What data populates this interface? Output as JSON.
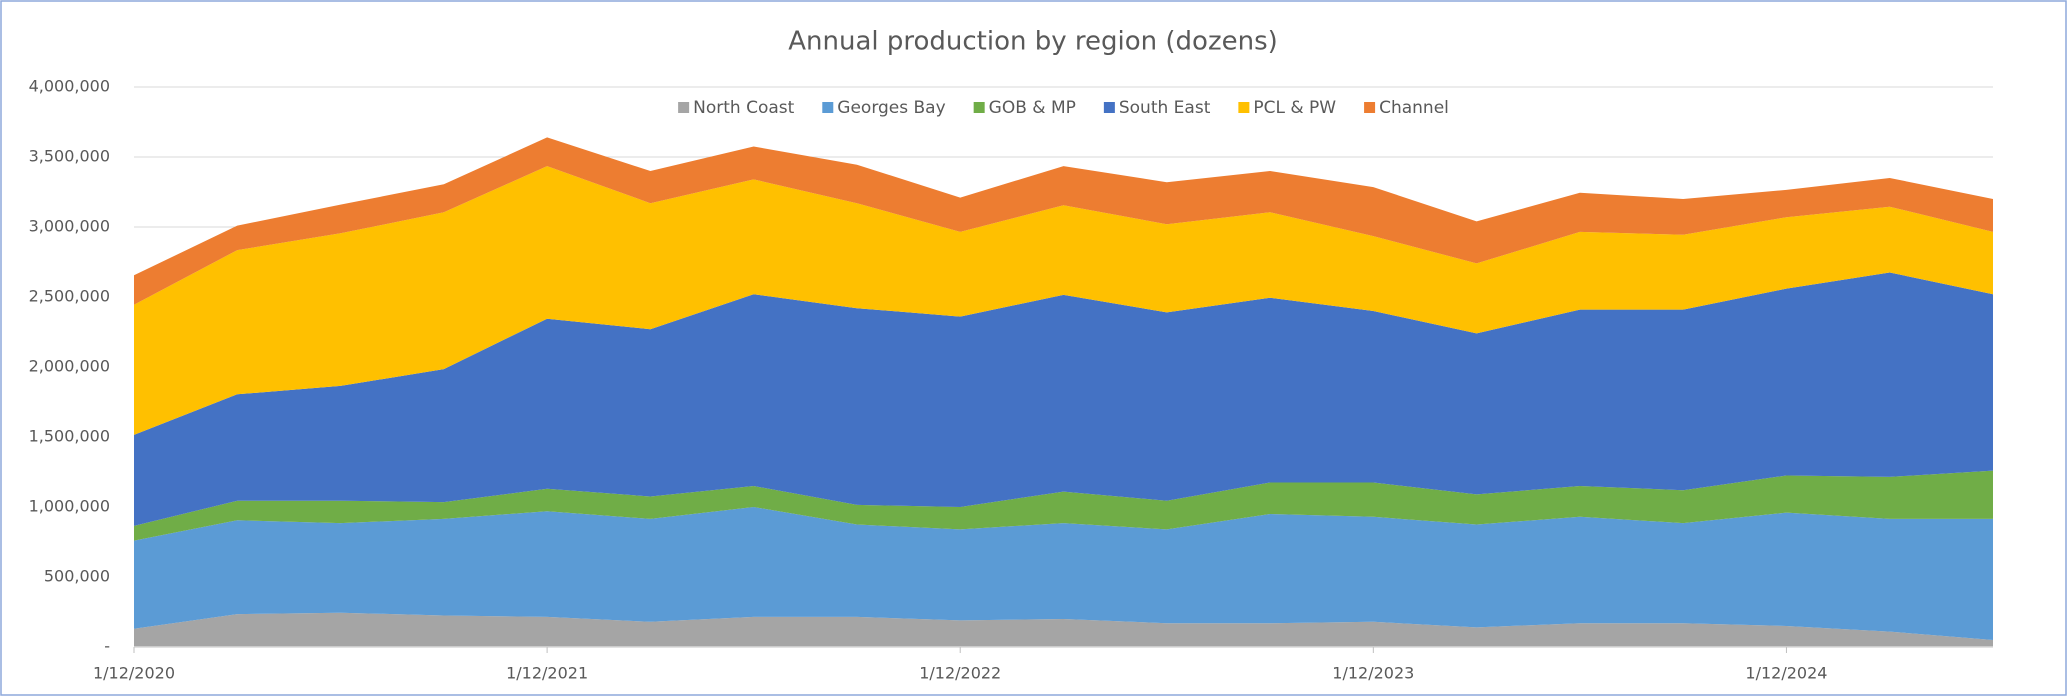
{
  "chart_data": {
    "type": "area",
    "stacked": true,
    "title": "Annual production by region (dozens)",
    "categories": [
      "1/12/2020",
      null,
      null,
      null,
      "1/12/2021",
      null,
      null,
      null,
      "1/12/2022",
      null,
      null,
      null,
      "1/12/2023",
      null,
      null,
      null,
      "1/12/2024",
      null,
      null
    ],
    "series": [
      {
        "name": "North Coast",
        "color": "#a5a5a5",
        "values": [
          130000,
          235000,
          245000,
          225000,
          215000,
          180000,
          215000,
          215000,
          190000,
          200000,
          170000,
          170000,
          180000,
          140000,
          170000,
          170000,
          150000,
          110000,
          50000
        ]
      },
      {
        "name": "Georges Bay",
        "color": "#5b9bd5",
        "values": [
          630000,
          670000,
          640000,
          690000,
          755000,
          735000,
          785000,
          660000,
          650000,
          685000,
          670000,
          780000,
          750000,
          735000,
          760000,
          715000,
          810000,
          805000,
          865000
        ]
      },
      {
        "name": "GOB & MP",
        "color": "#70ad47",
        "values": [
          105000,
          140000,
          160000,
          120000,
          160000,
          160000,
          150000,
          140000,
          160000,
          225000,
          205000,
          225000,
          245000,
          215000,
          220000,
          235000,
          265000,
          300000,
          345000
        ]
      },
      {
        "name": "South East",
        "color": "#4472c4",
        "values": [
          650000,
          760000,
          820000,
          950000,
          1215000,
          1195000,
          1370000,
          1405000,
          1360000,
          1405000,
          1345000,
          1320000,
          1225000,
          1150000,
          1260000,
          1290000,
          1335000,
          1460000,
          1260000
        ]
      },
      {
        "name": "PCL & PW",
        "color": "#ffc000",
        "values": [
          930000,
          1030000,
          1090000,
          1120000,
          1090000,
          900000,
          820000,
          750000,
          605000,
          640000,
          630000,
          610000,
          535000,
          500000,
          555000,
          535000,
          510000,
          470000,
          445000
        ]
      },
      {
        "name": "Channel",
        "color": "#ed7d31",
        "values": [
          210000,
          175000,
          205000,
          200000,
          205000,
          230000,
          235000,
          275000,
          245000,
          280000,
          300000,
          295000,
          350000,
          300000,
          280000,
          255000,
          195000,
          205000,
          235000
        ]
      }
    ],
    "ylim": [
      0,
      4000000
    ],
    "yticks": [
      {
        "value": 0,
        "label": "-"
      },
      {
        "value": 500000,
        "label": "500,000"
      },
      {
        "value": 1000000,
        "label": "1,000,000"
      },
      {
        "value": 1500000,
        "label": "1,500,000"
      },
      {
        "value": 2000000,
        "label": "2,000,000"
      },
      {
        "value": 2500000,
        "label": "2,500,000"
      },
      {
        "value": 3000000,
        "label": "3,000,000"
      },
      {
        "value": 3500000,
        "label": "3,500,000"
      },
      {
        "value": 4000000,
        "label": "4,000,000"
      }
    ],
    "grid": true,
    "legend": "top"
  }
}
